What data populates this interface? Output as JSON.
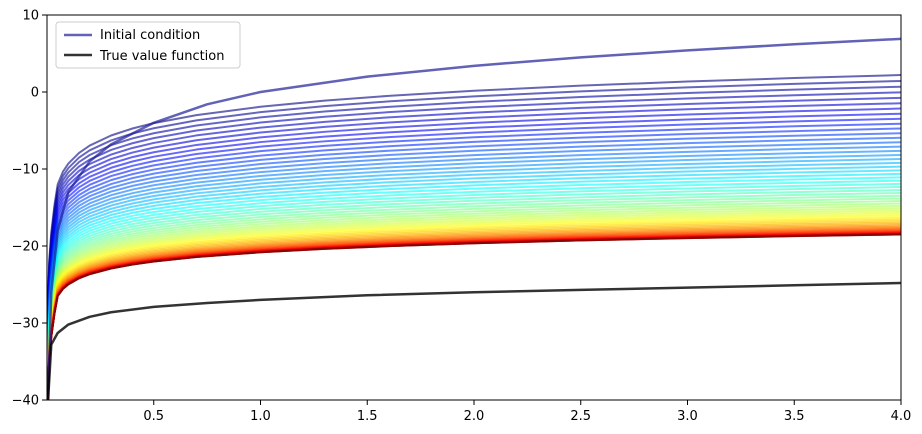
{
  "chart_data": {
    "type": "line",
    "title": "",
    "xlabel": "",
    "ylabel": "",
    "xlim": [
      0.0,
      4.0
    ],
    "ylim": [
      -40,
      10
    ],
    "x_ticks": [
      0.5,
      1.0,
      1.5,
      2.0,
      2.5,
      3.0,
      3.5,
      4.0
    ],
    "x_tick_labels": [
      "0.5",
      "1.0",
      "1.5",
      "2.0",
      "2.5",
      "3.0",
      "3.5",
      "4.0"
    ],
    "y_ticks": [
      -40,
      -30,
      -20,
      -10,
      0,
      10
    ],
    "y_tick_labels": [
      "−40",
      "−30",
      "−20",
      "−10",
      "0",
      "10"
    ],
    "grid": false,
    "legend_position": "top-left",
    "legend": [
      {
        "label": "Initial condition",
        "color": "#1f1f99"
      },
      {
        "label": "True value function",
        "color": "#000000"
      }
    ],
    "initial_condition": {
      "name": "Initial condition",
      "color": "#1f1f99",
      "x": [
        0.005,
        0.02,
        0.05,
        0.1,
        0.2,
        0.3,
        0.5,
        0.75,
        1.0,
        1.5,
        2.0,
        2.5,
        3.0,
        3.5,
        4.0
      ],
      "y": [
        -39.5,
        -26.0,
        -18.0,
        -13.0,
        -9.0,
        -6.8,
        -4.0,
        -1.6,
        0.0,
        2.0,
        3.4,
        4.5,
        5.4,
        6.2,
        6.9
      ]
    },
    "iterations": {
      "count": 60,
      "colormap": "jet",
      "first_iteration": {
        "x_end": 4.0,
        "y_at_start": -12.0,
        "y_at_end": 2.2
      },
      "last_iteration": {
        "x_end": 4.0,
        "y_at_start": -26.5,
        "y_at_end": -18.5
      },
      "y_at_x0_005": [
        -28.0,
        -40.0
      ]
    },
    "true_value_function": {
      "name": "True value function",
      "color": "#000000",
      "x": [
        0.005,
        0.02,
        0.05,
        0.1,
        0.2,
        0.3,
        0.5,
        0.75,
        1.0,
        1.5,
        2.0,
        2.5,
        3.0,
        3.5,
        4.0
      ],
      "y": [
        -40.0,
        -32.8,
        -31.3,
        -30.2,
        -29.2,
        -28.6,
        -27.9,
        -27.4,
        -27.0,
        -26.4,
        -26.0,
        -25.7,
        -25.4,
        -25.1,
        -24.8
      ]
    },
    "colors": {
      "initial_condition": "#1f1f99",
      "true_value_function": "#000000"
    }
  }
}
